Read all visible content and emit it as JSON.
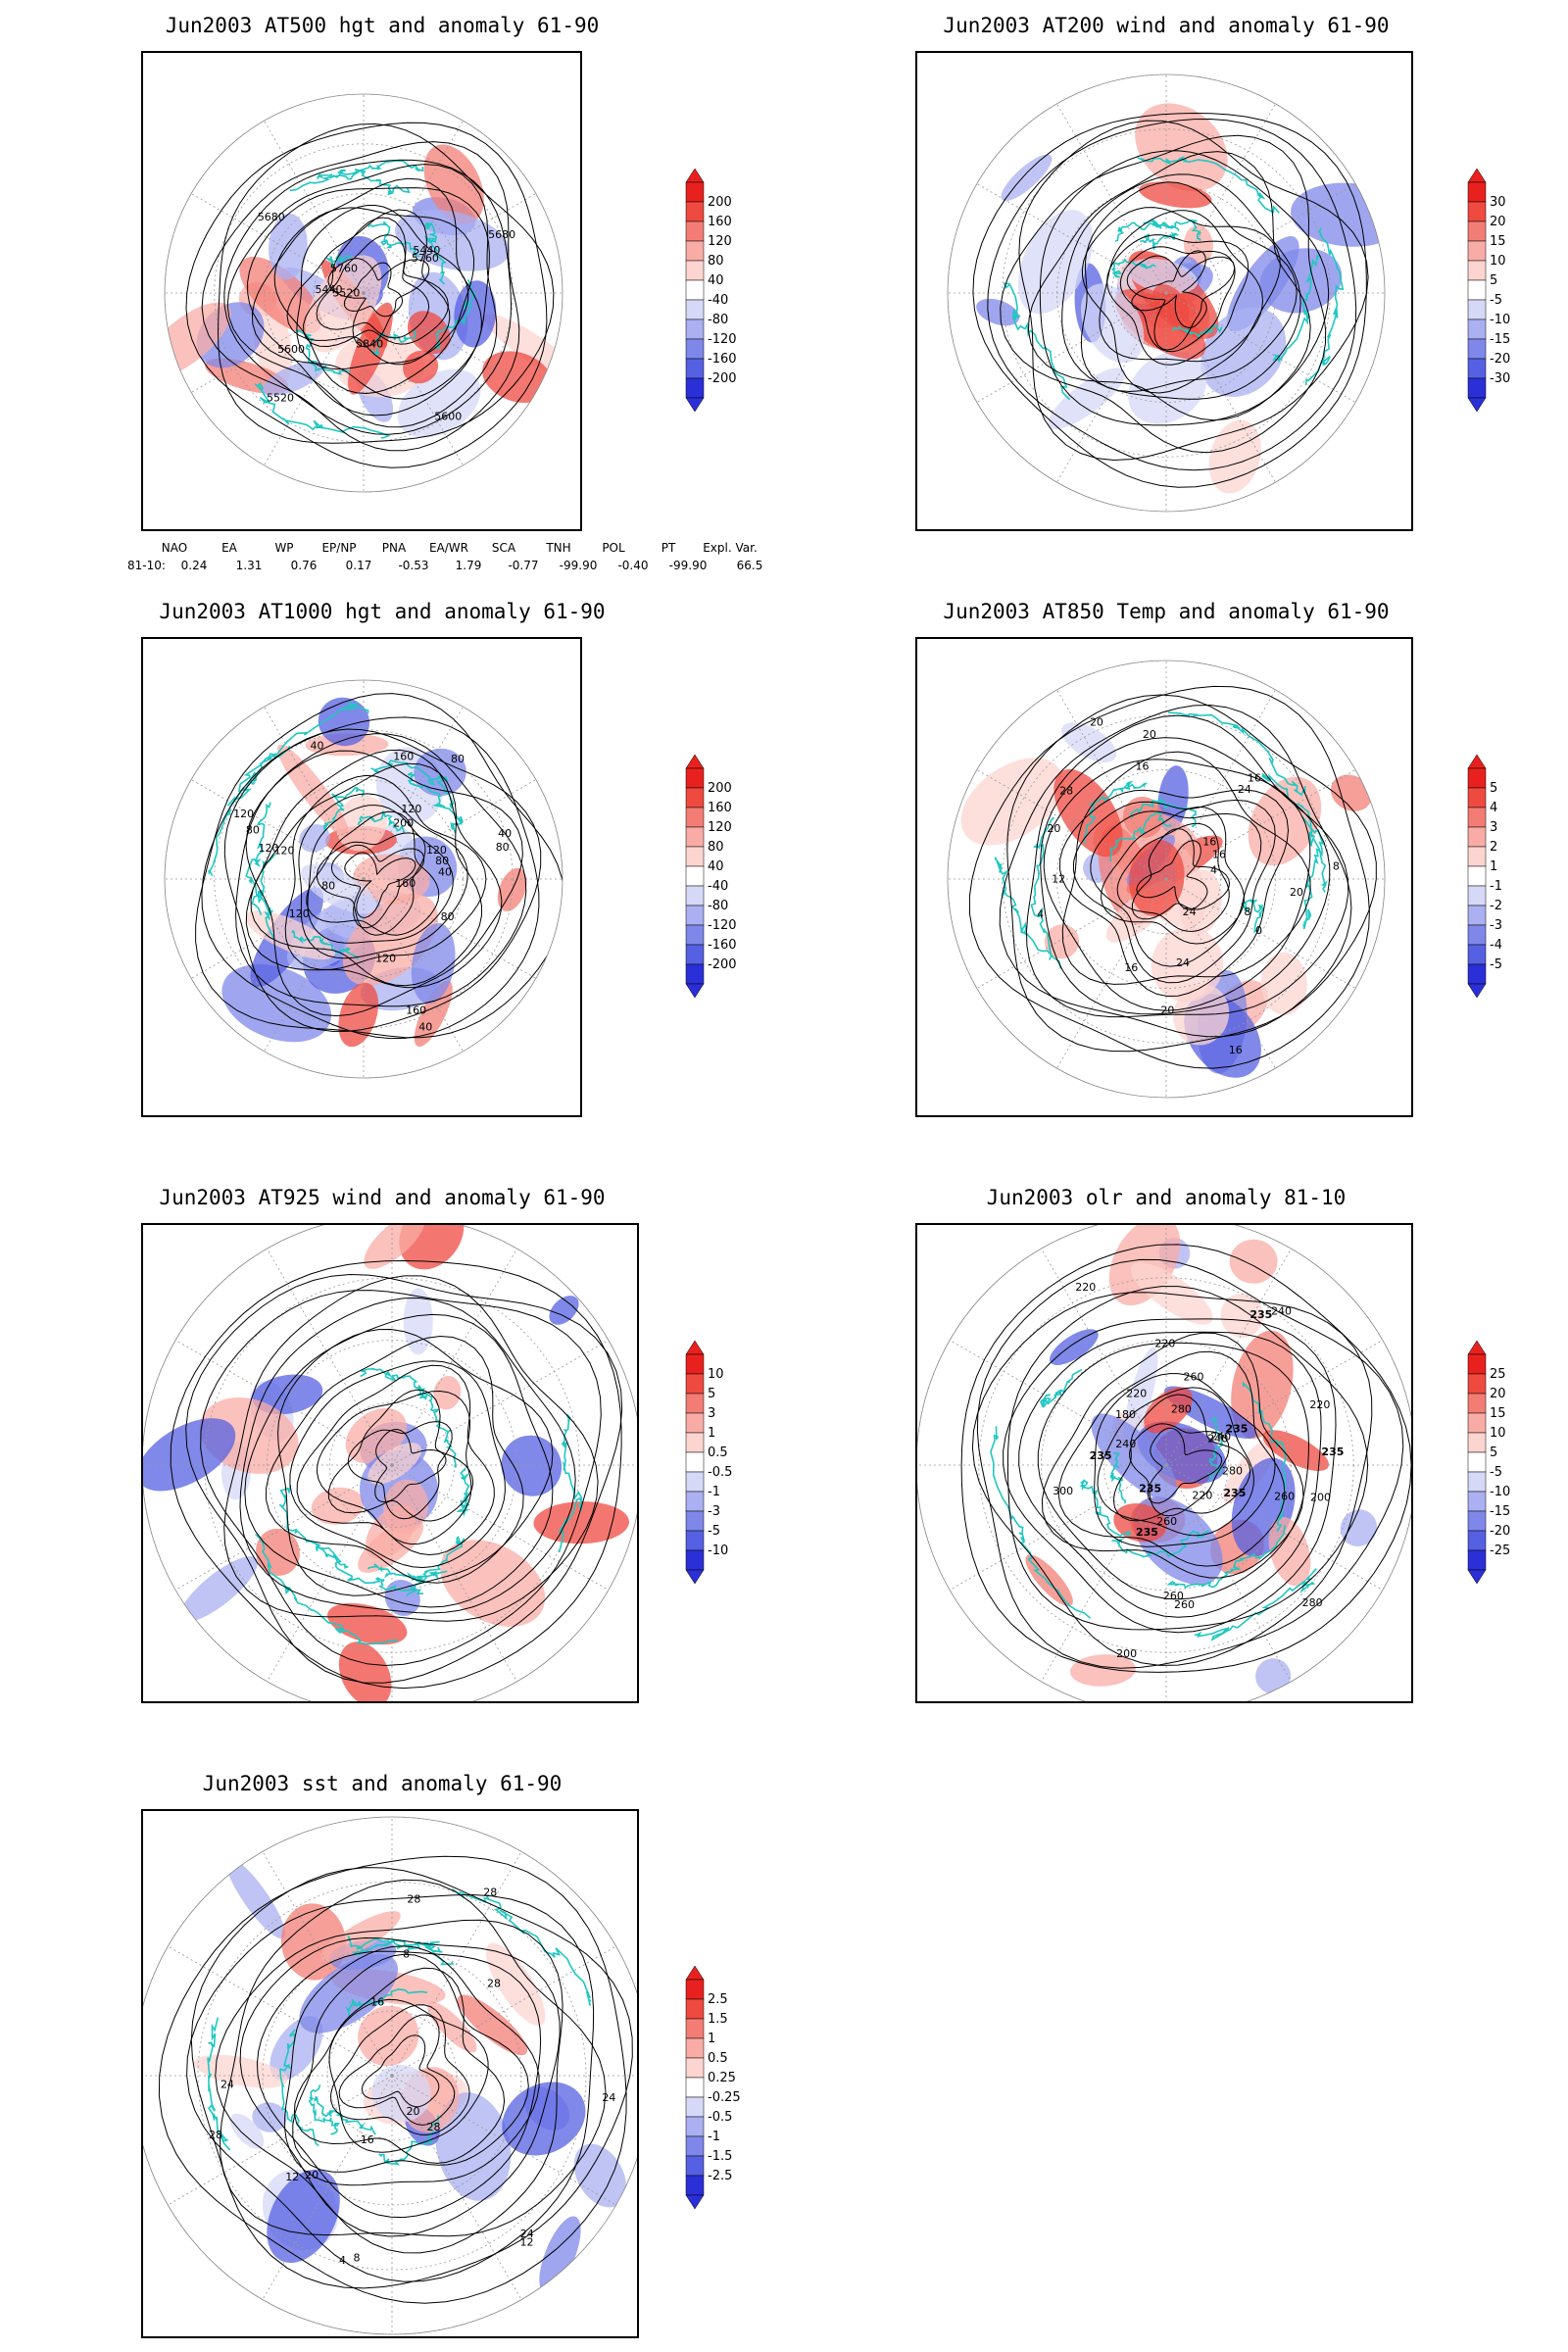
{
  "panels": [
    {
      "id": "p1",
      "title": "Jun2003 AT500 hgt and anomaly 61-90",
      "map_shape": "circle-in-square",
      "colorbar": {
        "labels": [
          "200",
          "160",
          "120",
          "80",
          "40",
          "-40",
          "-80",
          "-120",
          "-160",
          "-200"
        ]
      },
      "contour_labels": [
        "5760",
        "5680",
        "5600",
        "5520",
        "5440",
        "5440",
        "5520",
        "5600",
        "5680",
        "5760",
        "5840"
      ],
      "anomaly_colors": [
        "#d9342b",
        "#3a50d9"
      ]
    },
    {
      "id": "p2",
      "title": "Jun2003 AT200 wind and anomaly 61-90",
      "map_shape": "circle-in-square",
      "colorbar": {
        "labels": [
          "30",
          "20",
          "15",
          "10",
          "5",
          "-5",
          "-10",
          "-15",
          "-20",
          "-30"
        ]
      },
      "contour_labels": []
    },
    {
      "id": "p3",
      "title": "Jun2003 AT1000 hgt and anomaly 61-90",
      "map_shape": "circle-in-square",
      "colorbar": {
        "labels": [
          "200",
          "160",
          "120",
          "80",
          "40",
          "-40",
          "-80",
          "-120",
          "-160",
          "-200"
        ]
      },
      "contour_labels": [
        "120",
        "160",
        "80",
        "80",
        "160",
        "120",
        "120",
        "40",
        "200",
        "160",
        "120",
        "40",
        "80",
        "80",
        "40",
        "80",
        "120",
        "80",
        "40",
        "120",
        "120"
      ]
    },
    {
      "id": "p4",
      "title": "Jun2003 AT850 Temp and anomaly 61-90",
      "map_shape": "circle-in-square",
      "colorbar": {
        "labels": [
          "5",
          "4",
          "3",
          "2",
          "1",
          "-1",
          "-2",
          "-3",
          "-4",
          "-5"
        ]
      },
      "contour_labels": [
        "16",
        "16",
        "20",
        "16",
        "12",
        "20",
        "8",
        "4",
        "0",
        "4",
        "8",
        "20",
        "24",
        "20",
        "24",
        "16",
        "28",
        "24",
        "20",
        "16",
        "16"
      ]
    },
    {
      "id": "p5",
      "title": "Jun2003 AT925 wind and anomaly 61-90",
      "map_shape": "full-disk",
      "colorbar": {
        "labels": [
          "10",
          "5",
          "3",
          "1",
          "0.5",
          "-0.5",
          "-1",
          "-3",
          "-5",
          "-10"
        ]
      },
      "contour_labels": []
    },
    {
      "id": "p6",
      "title": "Jun2003 olr and anomaly 81-10",
      "map_shape": "full-disk",
      "colorbar": {
        "labels": [
          "25",
          "20",
          "15",
          "10",
          "5",
          "-5",
          "-10",
          "-15",
          "-20",
          "-25"
        ]
      },
      "contour_labels": [
        "280",
        "260",
        "240",
        "235",
        "235",
        "260",
        "220",
        "240",
        "235",
        "260",
        "235",
        "220",
        "200",
        "280",
        "235",
        "260",
        "220",
        "240",
        "235",
        "220",
        "200",
        "180",
        "260",
        "280",
        "300",
        "235",
        "220",
        "240"
      ]
    },
    {
      "id": "p7",
      "title": "Jun2003 sst and anomaly 61-90",
      "map_shape": "full-disk",
      "colorbar": {
        "labels": [
          "2.5",
          "1.5",
          "1",
          "0.5",
          "0.25",
          "-0.25",
          "-0.5",
          "-1",
          "-1.5",
          "-2.5"
        ]
      },
      "contour_labels": [
        "28",
        "28",
        "24",
        "20",
        "16",
        "12",
        "8",
        "4",
        "24",
        "20",
        "16",
        "12",
        "8",
        "28",
        "24",
        "28",
        "28"
      ]
    }
  ],
  "indices": {
    "headers": [
      "NAO",
      "EA",
      "WP",
      "EP/NP",
      "PNA",
      "EA/WR",
      "SCA",
      "TNH",
      "POL",
      "PT",
      "Expl. Var."
    ],
    "row_label": "81-10:",
    "values": [
      "0.24",
      "1.31",
      "0.76",
      "0.17",
      "-0.53",
      "1.79",
      "-0.77",
      "-99.90",
      "-0.40",
      "-99.90",
      "66.5"
    ]
  },
  "colorbar_palette": [
    "#e8211e",
    "#ef4a40",
    "#f37d75",
    "#f9aca6",
    "#fcd4d0",
    "#ffffff",
    "#d6d8f7",
    "#aab0f1",
    "#7f88ea",
    "#5560e2",
    "#2a2fd8"
  ]
}
